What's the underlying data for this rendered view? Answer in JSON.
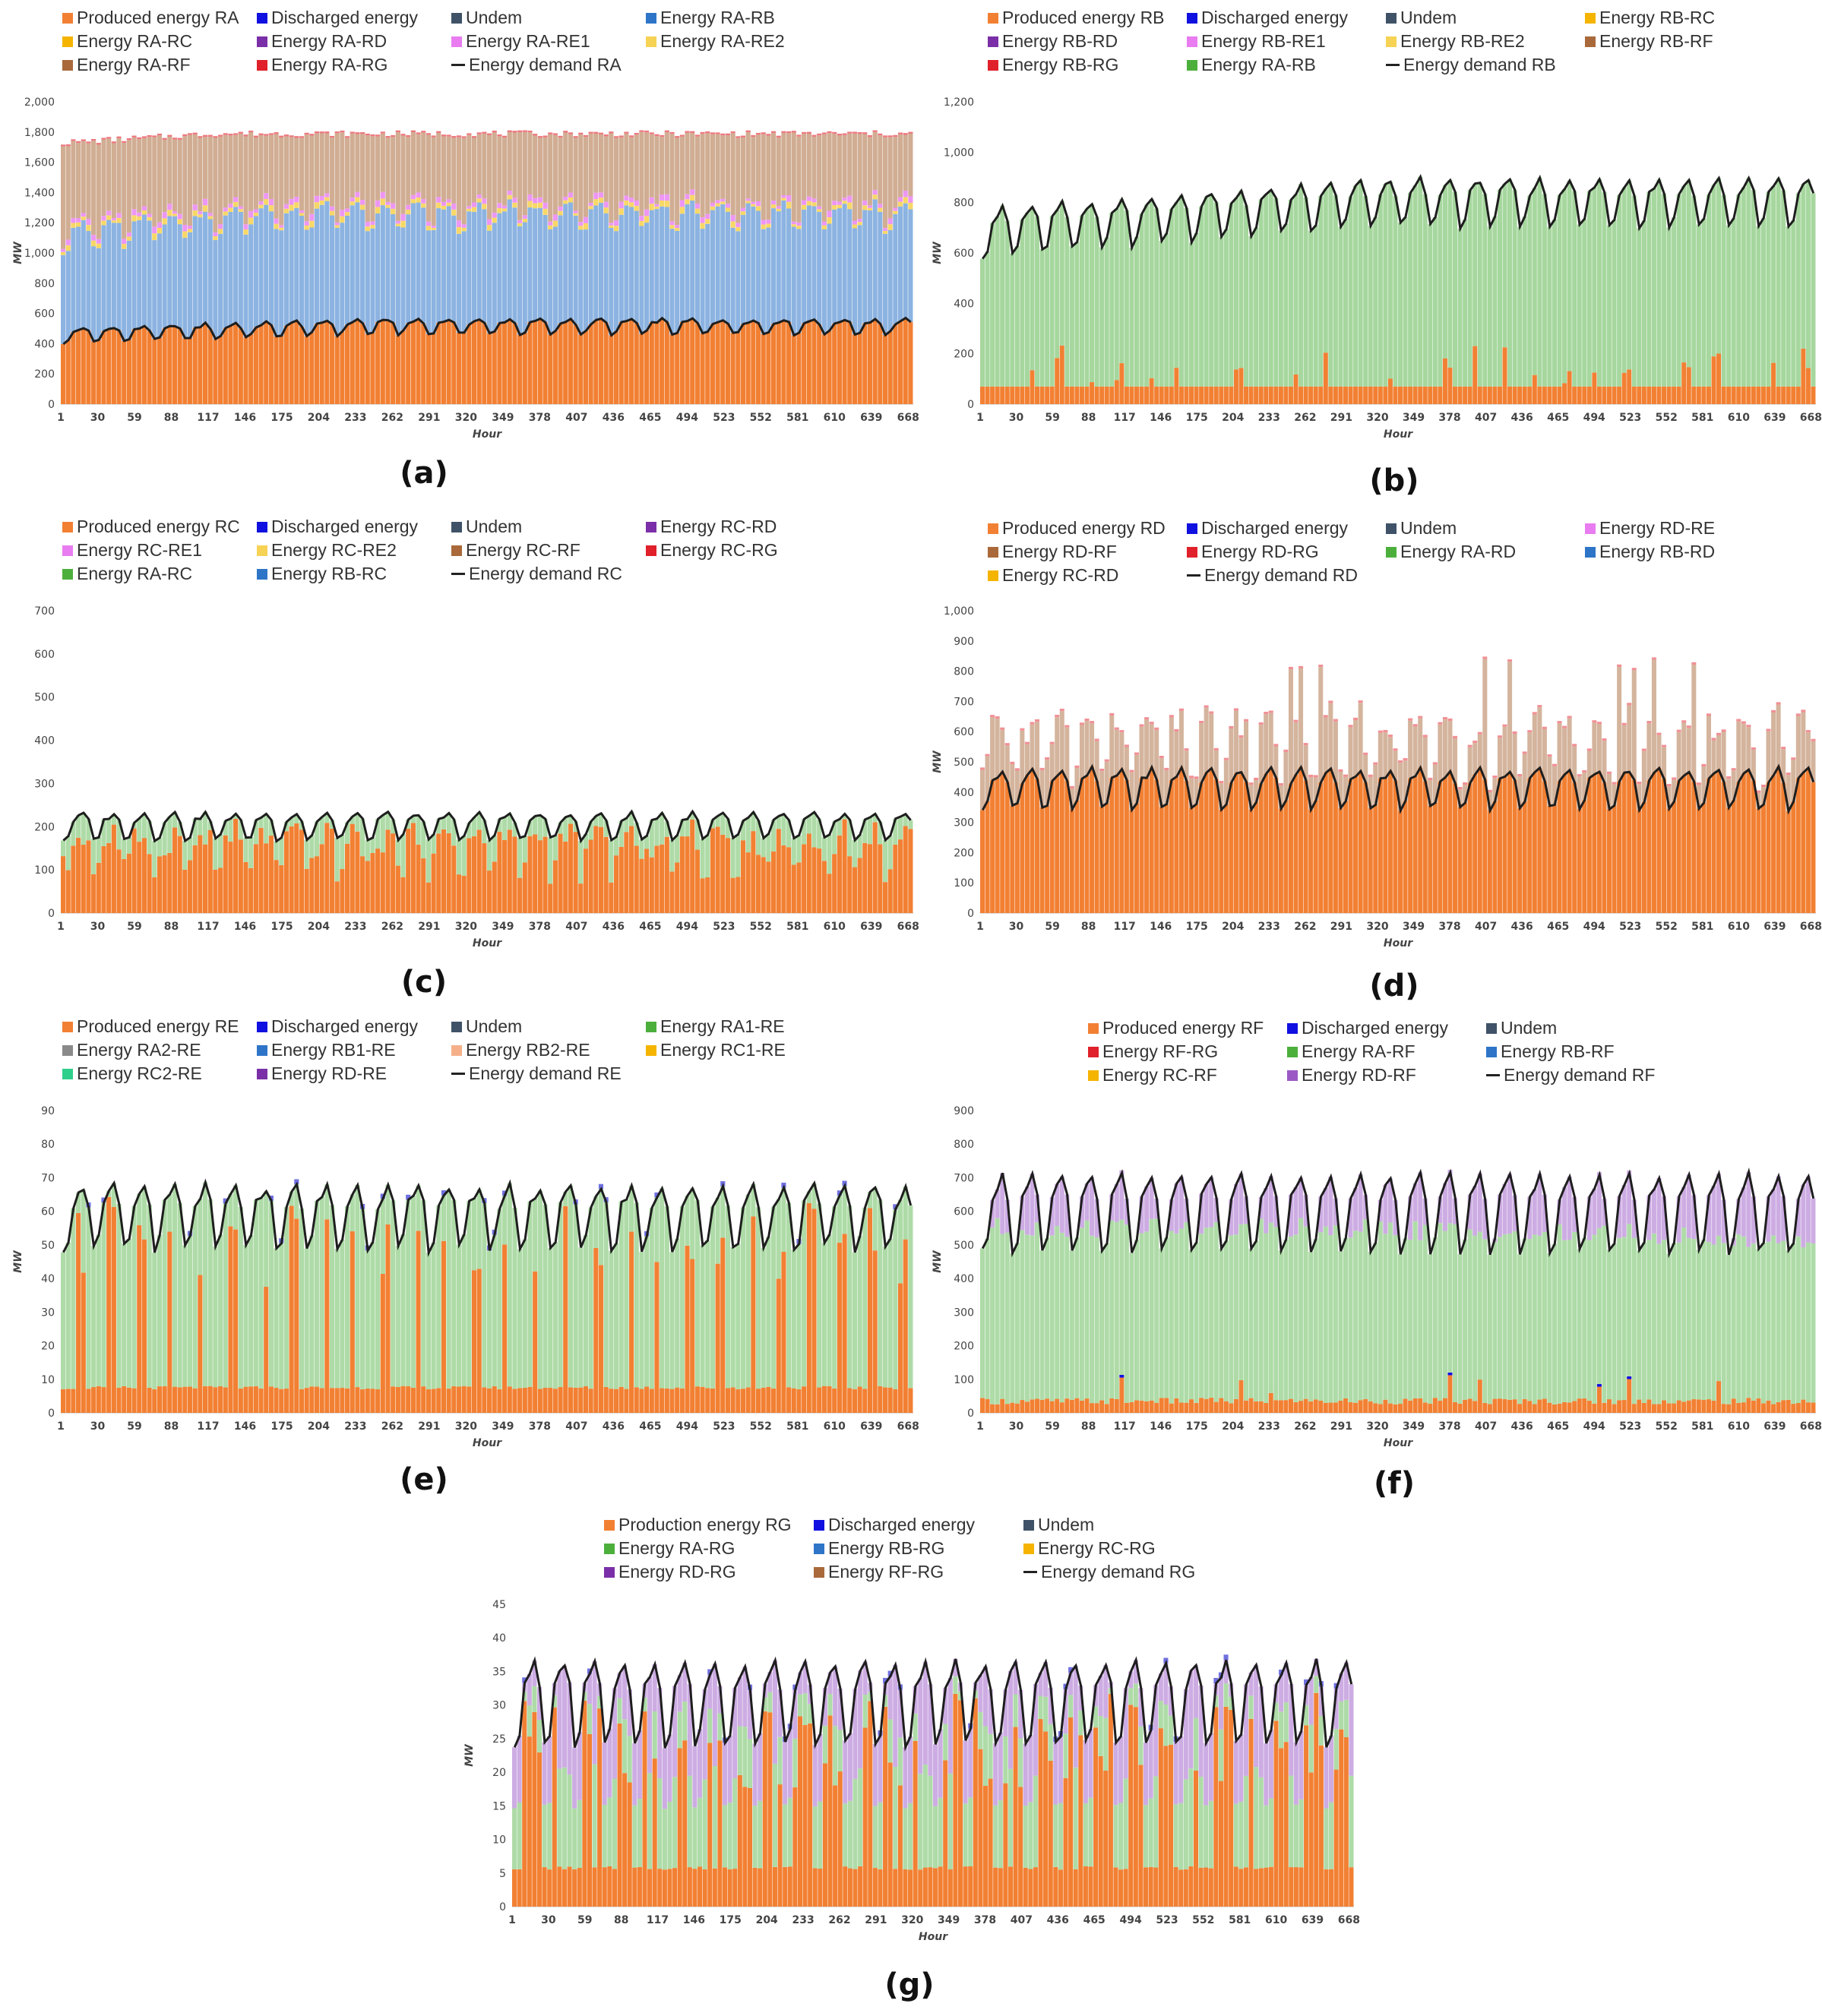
{
  "chart_data": [
    {
      "id": "a",
      "type": "bar",
      "caption": "(a)",
      "title": "",
      "xlabel": "Hour",
      "ylabel": "MW",
      "ylim": [
        0,
        2000
      ],
      "yticks": [
        "0",
        "200",
        "400",
        "600",
        "800",
        "1,000",
        "1,200",
        "1,400",
        "1,600",
        "1,800",
        "2,000"
      ],
      "xticks": [
        "1",
        "30",
        "59",
        "88",
        "117",
        "146",
        "175",
        "204",
        "233",
        "262",
        "291",
        "320",
        "349",
        "378",
        "407",
        "436",
        "465",
        "494",
        "523",
        "552",
        "581",
        "610",
        "639",
        "668"
      ],
      "legend": [
        {
          "label": "Produced energy RA",
          "color": "#f28033"
        },
        {
          "label": "Discharged energy",
          "color": "#1010e0"
        },
        {
          "label": "Undem",
          "color": "#3f5267"
        },
        {
          "label": "Energy RA-RB",
          "color": "#2e75c8"
        },
        {
          "label": "Energy RA-RC",
          "color": "#f5b400"
        },
        {
          "label": "Energy RA-RD",
          "color": "#7a2fa8"
        },
        {
          "label": "Energy RA-RE1",
          "color": "#e87cf0"
        },
        {
          "label": "Energy RA-RE2",
          "color": "#f6d255"
        },
        {
          "label": "Energy RA-RF",
          "color": "#a9693a"
        },
        {
          "label": "Energy RA-RG",
          "color": "#e0202a"
        },
        {
          "label": "Energy demand RA",
          "color": "#222222",
          "line": true
        }
      ],
      "series": [
        {
          "name": "Produced energy RA",
          "approx_base": 500,
          "daily_amplitude": 65,
          "trend": 60
        },
        {
          "name": "Energy RA-RB",
          "approx_top": 1200,
          "daily_amplitude": 130
        },
        {
          "name": "Energy RA-RE1 / RA-RE2",
          "approx_band": 60
        },
        {
          "name": "Energy RA-RF",
          "approx_top": 1780
        },
        {
          "name": "Energy demand RA",
          "approx_base": 500,
          "daily_amplitude": 65
        }
      ]
    },
    {
      "id": "b",
      "type": "bar",
      "caption": "(b)",
      "title": "",
      "xlabel": "Hour",
      "ylabel": "MW",
      "ylim": [
        0,
        1200
      ],
      "yticks": [
        "0",
        "200",
        "400",
        "600",
        "800",
        "1,000",
        "1,200"
      ],
      "xticks": [
        "1",
        "30",
        "59",
        "88",
        "117",
        "146",
        "175",
        "204",
        "233",
        "262",
        "291",
        "320",
        "349",
        "378",
        "407",
        "436",
        "465",
        "494",
        "523",
        "552",
        "581",
        "610",
        "639",
        "668"
      ],
      "legend": [
        {
          "label": "Produced energy RB",
          "color": "#f28033"
        },
        {
          "label": "Discharged energy",
          "color": "#1010e0"
        },
        {
          "label": "Undem",
          "color": "#3f5267"
        },
        {
          "label": "Energy RB-RC",
          "color": "#f5b400"
        },
        {
          "label": "Energy RB-RD",
          "color": "#7a2fa8"
        },
        {
          "label": "Energy RB-RE1",
          "color": "#e87cf0"
        },
        {
          "label": "Energy RB-RE2",
          "color": "#f6d255"
        },
        {
          "label": "Energy RB-RF",
          "color": "#a9693a"
        },
        {
          "label": "Energy RB-RG",
          "color": "#e0202a"
        },
        {
          "label": "Energy RA-RB",
          "color": "#4caf3c"
        },
        {
          "label": "Energy demand RB",
          "color": "#222222",
          "line": true
        }
      ],
      "series": [
        {
          "name": "Produced energy RB",
          "approx_base": 70,
          "peaks_to": 240
        },
        {
          "name": "Energy demand RB",
          "approx_base": 760,
          "daily_amplitude": 120,
          "trend": 120
        }
      ]
    },
    {
      "id": "c",
      "type": "bar",
      "caption": "(c)",
      "title": "",
      "xlabel": "Hour",
      "ylabel": "",
      "ylim": [
        0,
        700
      ],
      "yticks": [
        "0",
        "100",
        "200",
        "300",
        "400",
        "500",
        "600",
        "700"
      ],
      "xticks": [
        "1",
        "30",
        "59",
        "88",
        "117",
        "146",
        "175",
        "204",
        "233",
        "262",
        "291",
        "320",
        "349",
        "378",
        "407",
        "436",
        "465",
        "494",
        "523",
        "552",
        "581",
        "610",
        "639",
        "668"
      ],
      "legend": [
        {
          "label": "Produced energy RC",
          "color": "#f28033"
        },
        {
          "label": "Discharged energy",
          "color": "#1010e0"
        },
        {
          "label": "Undem",
          "color": "#3f5267"
        },
        {
          "label": "Energy RC-RD",
          "color": "#7a2fa8"
        },
        {
          "label": "Energy RC-RE1",
          "color": "#e87cf0"
        },
        {
          "label": "Energy RC-RE2",
          "color": "#f6d255"
        },
        {
          "label": "Energy RC-RF",
          "color": "#a9693a"
        },
        {
          "label": "Energy RC-RG",
          "color": "#e0202a"
        },
        {
          "label": "Energy RA-RC",
          "color": "#4caf3c"
        },
        {
          "label": "Energy RB-RC",
          "color": "#2e75c8"
        },
        {
          "label": "Energy demand RC",
          "color": "#222222",
          "line": true
        }
      ],
      "series": [
        {
          "name": "Produced energy RC",
          "approx_base": 150,
          "daily_amplitude": 55
        },
        {
          "name": "Energy demand RC",
          "approx_base": 200,
          "daily_amplitude": 40
        }
      ]
    },
    {
      "id": "d",
      "type": "bar",
      "caption": "(d)",
      "title": "",
      "xlabel": "Hour",
      "ylabel": "MW",
      "ylim": [
        0,
        1000
      ],
      "yticks": [
        "0",
        "100",
        "200",
        "300",
        "400",
        "500",
        "600",
        "700",
        "800",
        "900",
        "1,000"
      ],
      "xticks": [
        "1",
        "30",
        "59",
        "88",
        "117",
        "146",
        "175",
        "204",
        "233",
        "262",
        "291",
        "320",
        "349",
        "378",
        "407",
        "436",
        "465",
        "494",
        "523",
        "552",
        "581",
        "610",
        "639",
        "668"
      ],
      "legend": [
        {
          "label": "Produced energy RD",
          "color": "#f28033"
        },
        {
          "label": "Discharged energy",
          "color": "#1010e0"
        },
        {
          "label": "Undem",
          "color": "#3f5267"
        },
        {
          "label": "Energy RD-RE",
          "color": "#e87cf0"
        },
        {
          "label": "Energy RD-RF",
          "color": "#a9693a"
        },
        {
          "label": "Energy RD-RG",
          "color": "#e0202a"
        },
        {
          "label": "Energy RA-RD",
          "color": "#4caf3c"
        },
        {
          "label": "Energy RB-RD",
          "color": "#2e75c8"
        },
        {
          "label": "Energy RC-RD",
          "color": "#f5b400"
        },
        {
          "label": "Energy demand RD",
          "color": "#222222",
          "line": true
        }
      ],
      "series": [
        {
          "name": "Produced energy RD",
          "approx_base": 420,
          "daily_amplitude": 85
        },
        {
          "name": "Energy RD-RF",
          "approx_top": 600,
          "peaks_to": 860
        },
        {
          "name": "Energy demand RD",
          "approx_base": 420,
          "daily_amplitude": 85
        }
      ]
    },
    {
      "id": "e",
      "type": "bar",
      "caption": "(e)",
      "title": "",
      "xlabel": "Hour",
      "ylabel": "MW",
      "ylim": [
        0,
        90
      ],
      "yticks": [
        "0",
        "10",
        "20",
        "30",
        "40",
        "50",
        "60",
        "70",
        "80",
        "90"
      ],
      "xticks": [
        "1",
        "30",
        "59",
        "88",
        "117",
        "146",
        "175",
        "204",
        "233",
        "262",
        "291",
        "320",
        "349",
        "378",
        "407",
        "436",
        "465",
        "494",
        "523",
        "552",
        "581",
        "610",
        "639",
        "668"
      ],
      "legend": [
        {
          "label": "Produced energy RE",
          "color": "#f28033"
        },
        {
          "label": "Discharged energy",
          "color": "#1010e0"
        },
        {
          "label": "Undem",
          "color": "#3f5267"
        },
        {
          "label": "Energy RA1-RE",
          "color": "#4caf3c"
        },
        {
          "label": "Energy RA2-RE",
          "color": "#8a8a8a"
        },
        {
          "label": "Energy RB1-RE",
          "color": "#2e75c8"
        },
        {
          "label": "Energy RB2-RE",
          "color": "#f5b08a"
        },
        {
          "label": "Energy RC1-RE",
          "color": "#f5b400"
        },
        {
          "label": "Energy RC2-RE",
          "color": "#2ecf8a"
        },
        {
          "label": "Energy RD-RE",
          "color": "#7a2fa8"
        },
        {
          "label": "Energy demand RE",
          "color": "#222222",
          "line": true
        }
      ],
      "series": [
        {
          "name": "Produced energy RE",
          "approx_base": 7,
          "daily_peaks_to": 65
        },
        {
          "name": "Energy demand RE",
          "approx_base": 58,
          "daily_amplitude": 12
        }
      ]
    },
    {
      "id": "f",
      "type": "bar",
      "caption": "(f)",
      "title": "",
      "xlabel": "Hour",
      "ylabel": "MW",
      "ylim": [
        0,
        900
      ],
      "yticks": [
        "0",
        "100",
        "200",
        "300",
        "400",
        "500",
        "600",
        "700",
        "800",
        "900"
      ],
      "xticks": [
        "1",
        "30",
        "59",
        "88",
        "117",
        "146",
        "175",
        "204",
        "233",
        "262",
        "291",
        "320",
        "349",
        "378",
        "407",
        "436",
        "465",
        "494",
        "523",
        "552",
        "581",
        "610",
        "639",
        "668"
      ],
      "legend": [
        {
          "label": "Produced energy RF",
          "color": "#f28033"
        },
        {
          "label": "Discharged energy",
          "color": "#1010e0"
        },
        {
          "label": "Undem",
          "color": "#3f5267"
        },
        {
          "label": "Energy RF-RG",
          "color": "#e0202a"
        },
        {
          "label": "Energy RA-RF",
          "color": "#4caf3c"
        },
        {
          "label": "Energy RB-RF",
          "color": "#2e75c8"
        },
        {
          "label": "Energy RC-RF",
          "color": "#f5b400"
        },
        {
          "label": "Energy RD-RF",
          "color": "#9b59c6"
        },
        {
          "label": "Energy demand RF",
          "color": "#222222",
          "line": true
        }
      ],
      "series": [
        {
          "name": "Produced energy RF",
          "approx_base": 25,
          "peaks_to": 120
        },
        {
          "name": "Energy RA-RF",
          "approx_top": 560
        },
        {
          "name": "Energy demand RF",
          "approx_base": 600,
          "daily_amplitude": 150
        }
      ]
    },
    {
      "id": "g",
      "type": "bar",
      "caption": "(g)",
      "title": "",
      "xlabel": "Hour",
      "ylabel": "MW",
      "ylim": [
        0,
        45
      ],
      "yticks": [
        "0",
        "5",
        "10",
        "15",
        "20",
        "25",
        "30",
        "35",
        "40",
        "45"
      ],
      "xticks": [
        "1",
        "30",
        "59",
        "88",
        "117",
        "146",
        "175",
        "204",
        "233",
        "262",
        "291",
        "320",
        "349",
        "378",
        "407",
        "436",
        "465",
        "494",
        "523",
        "552",
        "581",
        "610",
        "639",
        "668"
      ],
      "legend": [
        {
          "label": "Production energy RG",
          "color": "#f28033"
        },
        {
          "label": "Discharged energy",
          "color": "#1010e0"
        },
        {
          "label": "Undem",
          "color": "#3f5267"
        },
        {
          "label": "Energy RA-RG",
          "color": "#4caf3c"
        },
        {
          "label": "Energy RB-RG",
          "color": "#2e75c8"
        },
        {
          "label": "Energy RC-RG",
          "color": "#f5b400"
        },
        {
          "label": "Energy RD-RG",
          "color": "#7a2fa8"
        },
        {
          "label": "Energy RF-RG",
          "color": "#a9693a"
        },
        {
          "label": "Energy demand RG",
          "color": "#222222",
          "line": true
        }
      ],
      "series": [
        {
          "name": "Production energy RG",
          "approx_base": 5.5,
          "daily_peaks_to": 32
        },
        {
          "name": "Energy demand RG",
          "approx_base": 32,
          "daily_amplitude": 8
        }
      ]
    }
  ]
}
